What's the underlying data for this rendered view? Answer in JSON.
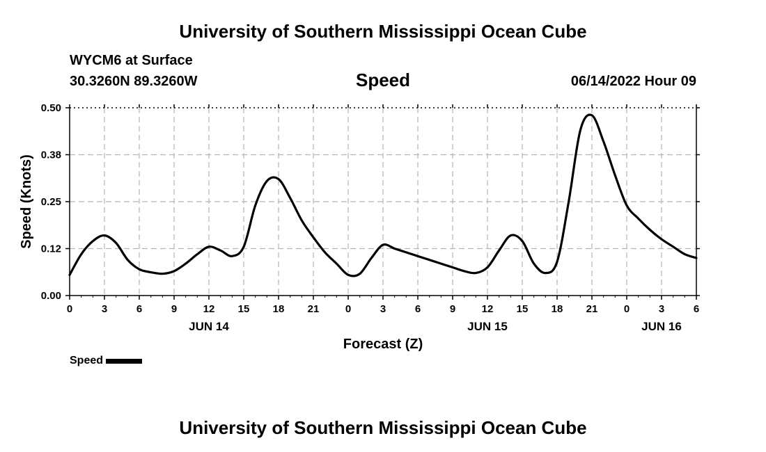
{
  "header": {
    "title": "University of Southern Mississippi Ocean Cube",
    "station": "WYCM6 at Surface",
    "coordinates": "30.3260N  89.3260W",
    "timestamp": "06/14/2022 Hour 09"
  },
  "footer": {
    "title": "University of Southern Mississippi Ocean Cube"
  },
  "legend": {
    "label": "Speed"
  },
  "chart_data": {
    "type": "line",
    "title": "Speed",
    "xlabel": "Forecast (Z)",
    "ylabel": "Speed (Knots)",
    "x_unit": "hours from 00Z JUN 14",
    "xlim": [
      0,
      54
    ],
    "ylim": [
      0,
      0.5
    ],
    "y_ticks": [
      "0.00",
      "0.12",
      "0.25",
      "0.38",
      "0.50"
    ],
    "x_ticks": [
      "0",
      "3",
      "6",
      "9",
      "12",
      "15",
      "18",
      "21",
      "0",
      "3",
      "6",
      "9",
      "12",
      "15",
      "18",
      "21",
      "0",
      "3",
      "6"
    ],
    "date_labels": [
      {
        "label": "JUN 14",
        "x": 12
      },
      {
        "label": "JUN 15",
        "x": 36
      },
      {
        "label": "JUN 16",
        "x": 51
      }
    ],
    "grid": true,
    "legend_position": "bottom-left",
    "series": [
      {
        "name": "Speed",
        "color": "#000000",
        "x": [
          0,
          1,
          2,
          3,
          4,
          5,
          6,
          7,
          8,
          9,
          10,
          11,
          12,
          13,
          14,
          15,
          16,
          17,
          18,
          19,
          20,
          21,
          22,
          23,
          24,
          25,
          26,
          27,
          28,
          29,
          30,
          31,
          32,
          33,
          34,
          35,
          36,
          37,
          38,
          39,
          40,
          41,
          42,
          43,
          44,
          45,
          46,
          47,
          48,
          49,
          50,
          51,
          52,
          53,
          54
        ],
        "y": [
          0.055,
          0.11,
          0.145,
          0.16,
          0.14,
          0.095,
          0.07,
          0.062,
          0.058,
          0.065,
          0.085,
          0.11,
          0.13,
          0.12,
          0.105,
          0.13,
          0.24,
          0.305,
          0.31,
          0.26,
          0.2,
          0.155,
          0.115,
          0.085,
          0.055,
          0.058,
          0.1,
          0.135,
          0.125,
          0.115,
          0.105,
          0.095,
          0.085,
          0.075,
          0.065,
          0.06,
          0.075,
          0.12,
          0.16,
          0.145,
          0.085,
          0.06,
          0.09,
          0.25,
          0.44,
          0.48,
          0.41,
          0.32,
          0.24,
          0.205,
          0.175,
          0.15,
          0.13,
          0.11,
          0.1
        ]
      }
    ]
  }
}
